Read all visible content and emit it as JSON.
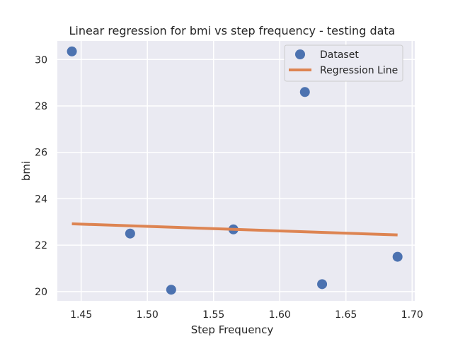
{
  "chart_data": {
    "type": "scatter",
    "title": "Linear regression for bmi vs step frequency - testing data",
    "xlabel": "Step Frequency",
    "ylabel": "bmi",
    "xlim": [
      1.432,
      1.702
    ],
    "ylim": [
      19.6,
      30.8
    ],
    "xticks": [
      "1.45",
      "1.50",
      "1.55",
      "1.60",
      "1.65",
      "1.70"
    ],
    "yticks": [
      "20",
      "22",
      "24",
      "26",
      "28",
      "30"
    ],
    "grid": true,
    "legend_position": "top-right",
    "series": [
      {
        "name": "Dataset",
        "kind": "scatter",
        "color": "#4c72b0",
        "points": [
          {
            "x": 1.443,
            "y": 30.35
          },
          {
            "x": 1.487,
            "y": 22.5
          },
          {
            "x": 1.518,
            "y": 20.08
          },
          {
            "x": 1.565,
            "y": 22.68
          },
          {
            "x": 1.619,
            "y": 28.6
          },
          {
            "x": 1.632,
            "y": 20.32
          },
          {
            "x": 1.689,
            "y": 21.5
          }
        ]
      },
      {
        "name": "Regression Line",
        "kind": "line",
        "color": "#dd8452",
        "points": [
          {
            "x": 1.443,
            "y": 22.92
          },
          {
            "x": 1.689,
            "y": 22.44
          }
        ]
      }
    ]
  }
}
